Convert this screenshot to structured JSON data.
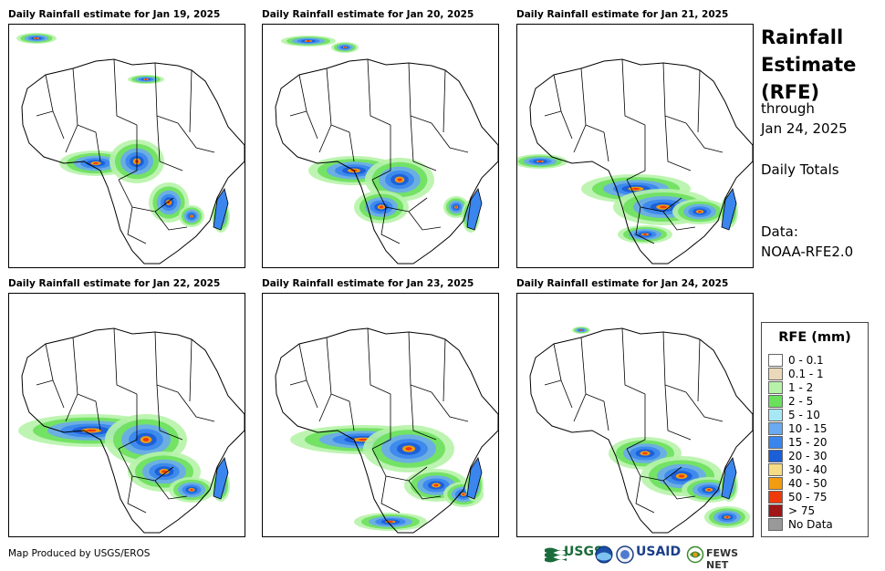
{
  "panels": [
    {
      "title": "Daily Rainfall estimate for Jan 19, 2025"
    },
    {
      "title": "Daily Rainfall estimate for Jan 20, 2025"
    },
    {
      "title": "Daily Rainfall estimate for Jan 21, 2025"
    },
    {
      "title": "Daily Rainfall estimate for Jan 22, 2025"
    },
    {
      "title": "Daily Rainfall estimate for Jan 23, 2025"
    },
    {
      "title": "Daily Rainfall estimate for Jan 24, 2025"
    }
  ],
  "side": {
    "title_lines": [
      "Rainfall",
      "Estimate",
      "(RFE)"
    ],
    "through_label": "through",
    "through_date": "Jan 24, 2025",
    "totals_label": "Daily Totals",
    "data_label": "Data:",
    "data_source": "NOAA-RFE2.0"
  },
  "legend": {
    "title": "RFE (mm)",
    "items": [
      {
        "label": "0 - 0.1",
        "color": "#ffffff"
      },
      {
        "label": "0.1 - 1",
        "color": "#ead8b8"
      },
      {
        "label": "1 - 2",
        "color": "#b6f3a8"
      },
      {
        "label": "2 - 5",
        "color": "#6be05d"
      },
      {
        "label": "5 - 10",
        "color": "#a8e8f5"
      },
      {
        "label": "10 - 15",
        "color": "#6aaaf0"
      },
      {
        "label": "15 - 20",
        "color": "#3a86ee"
      },
      {
        "label": "20 - 30",
        "color": "#1a5fd8"
      },
      {
        "label": "30 - 40",
        "color": "#f6dc84"
      },
      {
        "label": "40 - 50",
        "color": "#f29c10"
      },
      {
        "label": "50 - 75",
        "color": "#ef3a0c"
      },
      {
        "label": "> 75",
        "color": "#a11616"
      },
      {
        "label": "No Data",
        "color": "#999999"
      }
    ]
  },
  "footer": {
    "credit": "Map Produced by USGS/EROS",
    "logos": [
      "USGS",
      "USAID",
      "FEWS NET"
    ]
  }
}
